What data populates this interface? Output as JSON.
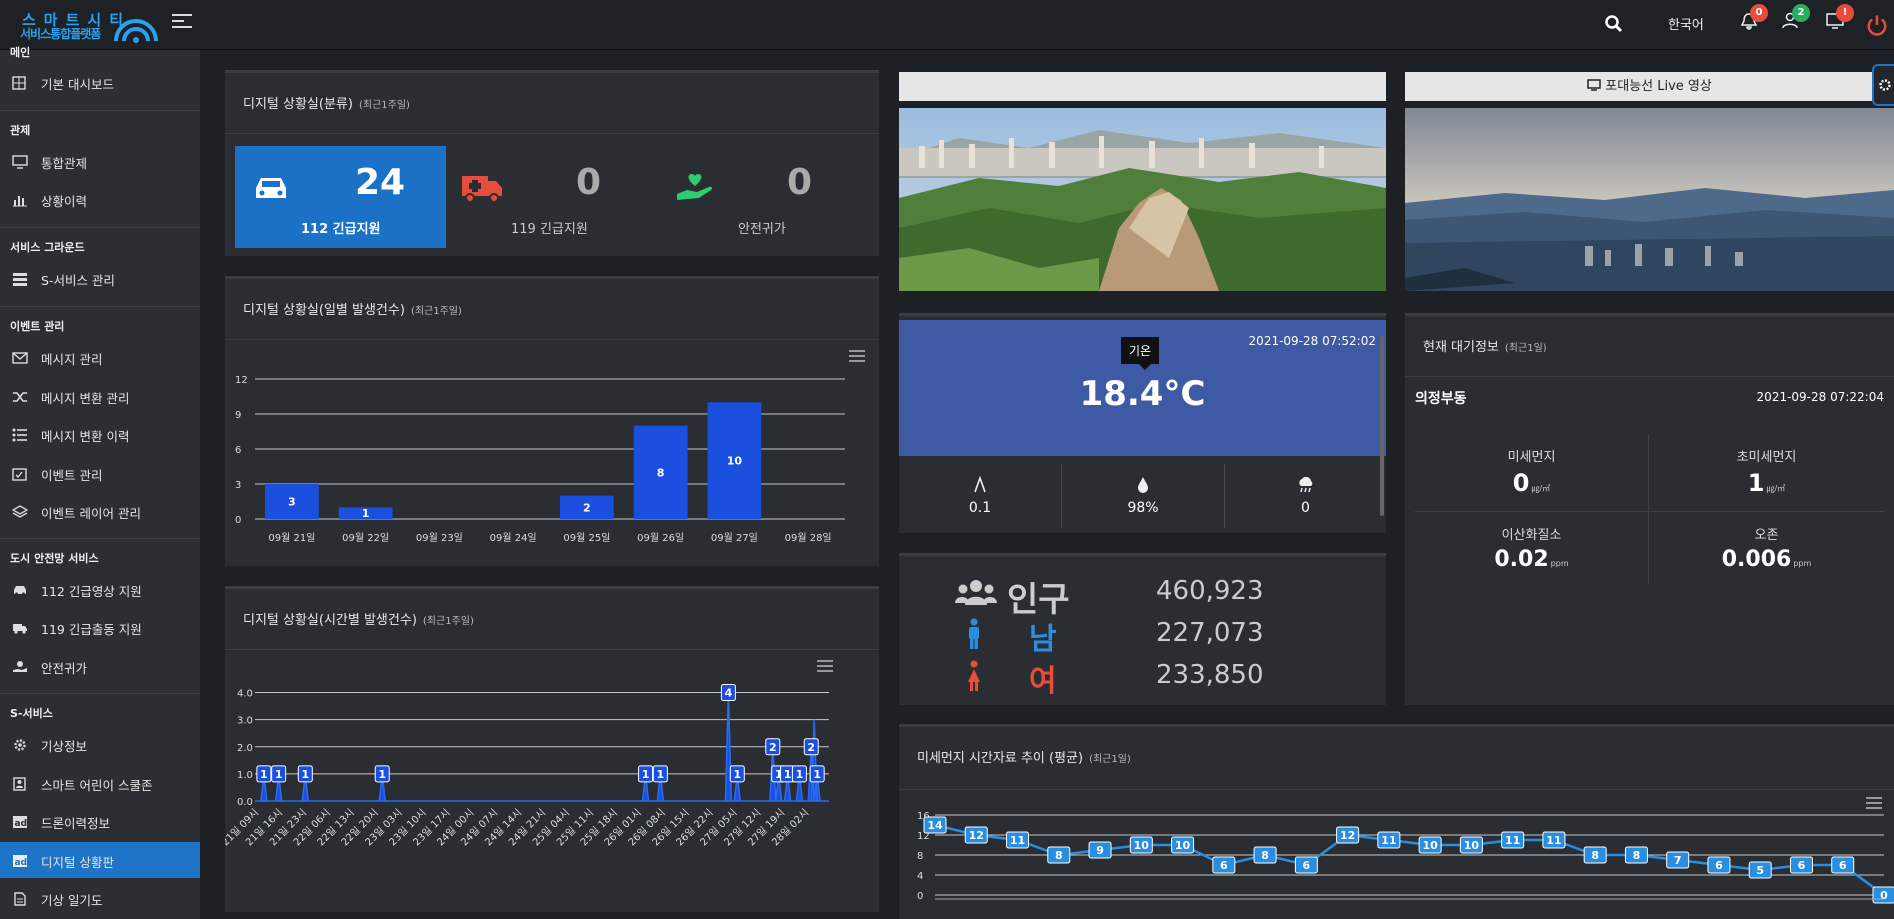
{
  "header": {
    "logo_line1": "스마트시티",
    "logo_line2": "서비스통합플랫폼",
    "language": "한국어",
    "badge_alarm": "0",
    "badge_user": "2",
    "badge_monitor": "!"
  },
  "sidebar": {
    "sections": [
      {
        "title": "메인",
        "items": [
          {
            "label": "기본 대시보드",
            "icon": "grid-icon"
          }
        ]
      },
      {
        "title": "관제",
        "items": [
          {
            "label": "통합관제",
            "icon": "monitor-icon"
          },
          {
            "label": "상황이력",
            "icon": "bar-chart-icon"
          }
        ]
      },
      {
        "title": "서비스 그라운드",
        "items": [
          {
            "label": "S-서비스 관리",
            "icon": "list-icon"
          }
        ]
      },
      {
        "title": "이벤트 관리",
        "items": [
          {
            "label": "메시지 관리",
            "icon": "envelope-icon"
          },
          {
            "label": "메시지 변환 관리",
            "icon": "shuffle-icon"
          },
          {
            "label": "메시지 변환 이력",
            "icon": "list-icon"
          },
          {
            "label": "이벤트 관리",
            "icon": "calendar-icon"
          },
          {
            "label": "이벤트 레이어 관리",
            "icon": "layers-icon"
          }
        ]
      },
      {
        "title": "도시 안전망 서비스",
        "items": [
          {
            "label": "112 긴급영상 지원",
            "icon": "car-icon"
          },
          {
            "label": "119 긴급출동 지원",
            "icon": "truck-icon"
          },
          {
            "label": "안전귀가",
            "icon": "hand-icon"
          }
        ]
      },
      {
        "title": "S-서비스",
        "items": [
          {
            "label": "기상정보",
            "icon": "gear-icon"
          },
          {
            "label": "스마트 어린이 스쿨존",
            "icon": "badge-icon"
          },
          {
            "label": "드론이력정보",
            "icon": "ad-icon"
          },
          {
            "label": "디지털 상황판",
            "icon": "ad-icon",
            "active": true
          },
          {
            "label": "기상 일기도",
            "icon": "file-icon"
          }
        ]
      }
    ]
  },
  "emergency": {
    "title": "디지털 상황실(분류)",
    "subtitle": "(최근1주일)",
    "cards": [
      {
        "label": "112 긴급지원",
        "value": "24",
        "icon": "car-icon",
        "color": "#ffffff"
      },
      {
        "label": "119 긴급지원",
        "value": "0",
        "icon": "ambulance-icon",
        "color": "#e74c3c"
      },
      {
        "label": "안전귀가",
        "value": "0",
        "icon": "hand-heart-icon",
        "color": "#2ecc71"
      }
    ]
  },
  "daily": {
    "title": "디지털 상황실(일별 발생건수)",
    "subtitle": "(최근1주일)",
    "chart_data": {
      "type": "bar",
      "categories": [
        "09월 21일",
        "09월 22일",
        "09월 23일",
        "09월 24일",
        "09월 25일",
        "09월 26일",
        "09월 27일",
        "09월 28일"
      ],
      "values": [
        3,
        1,
        0,
        0,
        2,
        8,
        10,
        0
      ],
      "ylim": [
        0,
        12
      ],
      "yticks": [
        0,
        3,
        6,
        9,
        12
      ],
      "color": "#1a4fe0"
    }
  },
  "hourly": {
    "title": "디지털 상황실(시간별 발생건수)",
    "subtitle": "(최근1주일)",
    "chart_data": {
      "type": "area",
      "tick_labels": [
        "21일 09시",
        "21일 16시",
        "21일 23시",
        "22일 06시",
        "22일 13시",
        "22일 20시",
        "23일 03시",
        "23일 10시",
        "23일 17시",
        "24일 00시",
        "24일 07시",
        "24일 14시",
        "24일 21시",
        "25일 04시",
        "25일 11시",
        "25일 18시",
        "26일 01시",
        "26일 08시",
        "26일 15시",
        "26일 22시",
        "27일 05시",
        "27일 12시",
        "27일 19시",
        "28일 02시"
      ],
      "hours": 168,
      "points": [
        {
          "h": 3,
          "v": 1
        },
        {
          "h": 8,
          "v": 1
        },
        {
          "h": 17,
          "v": 1
        },
        {
          "h": 43,
          "v": 1
        },
        {
          "h": 132,
          "v": 1
        },
        {
          "h": 137,
          "v": 1
        },
        {
          "h": 160,
          "v": 4
        },
        {
          "h": 163,
          "v": 1
        },
        {
          "h": 175,
          "v": 2
        },
        {
          "h": 177,
          "v": 1
        },
        {
          "h": 180,
          "v": 1
        },
        {
          "h": 184,
          "v": 1
        },
        {
          "h": 188,
          "v": 2
        },
        {
          "h": 190,
          "v": 1
        }
      ],
      "point_labels": [
        "1",
        "1",
        "1",
        "1",
        "1",
        "1",
        "4",
        "1",
        "2",
        "1",
        "1",
        "1",
        "2",
        "1"
      ],
      "ylim": [
        0,
        4.5
      ],
      "yticks": [
        "0.0",
        "1.0",
        "2.0",
        "3.0",
        "4.0"
      ],
      "peak_extra": {
        "h": 189,
        "v": 3
      }
    }
  },
  "camera": {
    "title": "포대능선 Live 영상"
  },
  "weather": {
    "timestamp": "2021-09-28 07:52:02",
    "tooltip": "기온",
    "temperature": "18.4°C",
    "wind": "0.1",
    "humidity": "98%",
    "rain": "0"
  },
  "population": {
    "total_label": "인구",
    "total": "460,923",
    "male_label": "남",
    "male": "227,073",
    "female_label": "여",
    "female": "233,850"
  },
  "air": {
    "title": "현재 대기정보",
    "subtitle": "(최근1일)",
    "station": "의정부동",
    "timestamp": "2021-09-28 07:22:04",
    "items": [
      {
        "label": "미세먼지",
        "value": "0",
        "unit": "㎍/㎥"
      },
      {
        "label": "초미세먼지",
        "value": "1",
        "unit": "㎍/㎥"
      },
      {
        "label": "이산화질소",
        "value": "0.02",
        "unit": "ppm"
      },
      {
        "label": "오존",
        "value": "0.006",
        "unit": "ppm"
      }
    ]
  },
  "dust": {
    "title": "미세먼지 시간자료 추이 (평균)",
    "subtitle": "(최근1일)",
    "chart_data": {
      "type": "line",
      "values": [
        14,
        12,
        11,
        8,
        9,
        10,
        10,
        6,
        8,
        6,
        12,
        11,
        10,
        10,
        11,
        11,
        8,
        8,
        7,
        6,
        5,
        6,
        6,
        0
      ],
      "ylim": [
        0,
        16
      ],
      "yticks": [
        0,
        4,
        8,
        12,
        16
      ],
      "color": "#2a8ee0"
    }
  }
}
